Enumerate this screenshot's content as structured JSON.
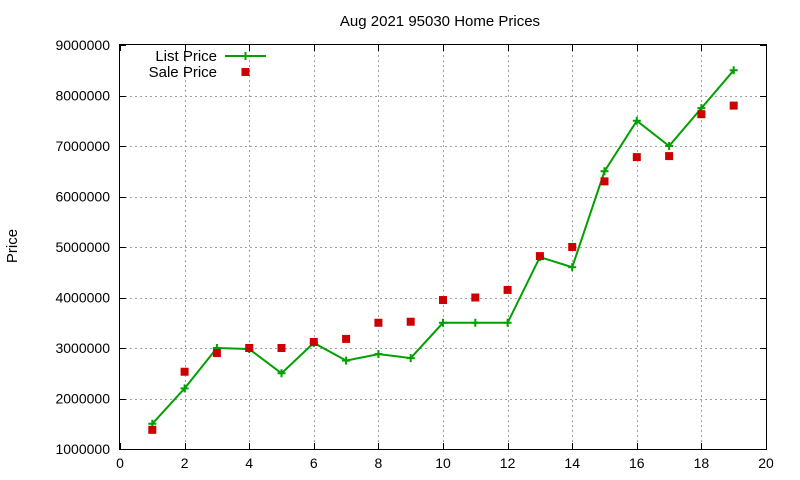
{
  "chart_data": {
    "type": "line",
    "title": "Aug 2021 95030 Home Prices",
    "xlabel": "",
    "ylabel": "Price",
    "xlim": [
      0,
      20
    ],
    "ylim": [
      1000000,
      9000000
    ],
    "xticks": [
      0,
      2,
      4,
      6,
      8,
      10,
      12,
      14,
      16,
      18,
      20
    ],
    "yticks": [
      1000000,
      2000000,
      3000000,
      4000000,
      5000000,
      6000000,
      7000000,
      8000000,
      9000000
    ],
    "grid": true,
    "legend_position": "top-left",
    "series": [
      {
        "name": "List Price",
        "style": "line-with-plus-markers",
        "color": "#00a000",
        "x": [
          1,
          2,
          3,
          4,
          5,
          6,
          7,
          8,
          9,
          10,
          11,
          12,
          13,
          14,
          15,
          16,
          17,
          18,
          19
        ],
        "y": [
          1500000,
          2200000,
          3000000,
          2980000,
          2500000,
          3100000,
          2750000,
          2880000,
          2800000,
          3500000,
          3500000,
          3500000,
          4800000,
          4600000,
          6500000,
          7500000,
          7000000,
          7750000,
          8500000
        ]
      },
      {
        "name": "Sale Price",
        "style": "square-markers",
        "color": "#cc0000",
        "x": [
          1,
          2,
          3,
          4,
          5,
          6,
          7,
          8,
          9,
          10,
          11,
          12,
          13,
          14,
          15,
          16,
          17,
          18,
          19
        ],
        "y": [
          1380000,
          2530000,
          2900000,
          3000000,
          3000000,
          3120000,
          3180000,
          3500000,
          3520000,
          3950000,
          4000000,
          4150000,
          4820000,
          5000000,
          6300000,
          6780000,
          6800000,
          7630000,
          7800000
        ]
      }
    ]
  }
}
